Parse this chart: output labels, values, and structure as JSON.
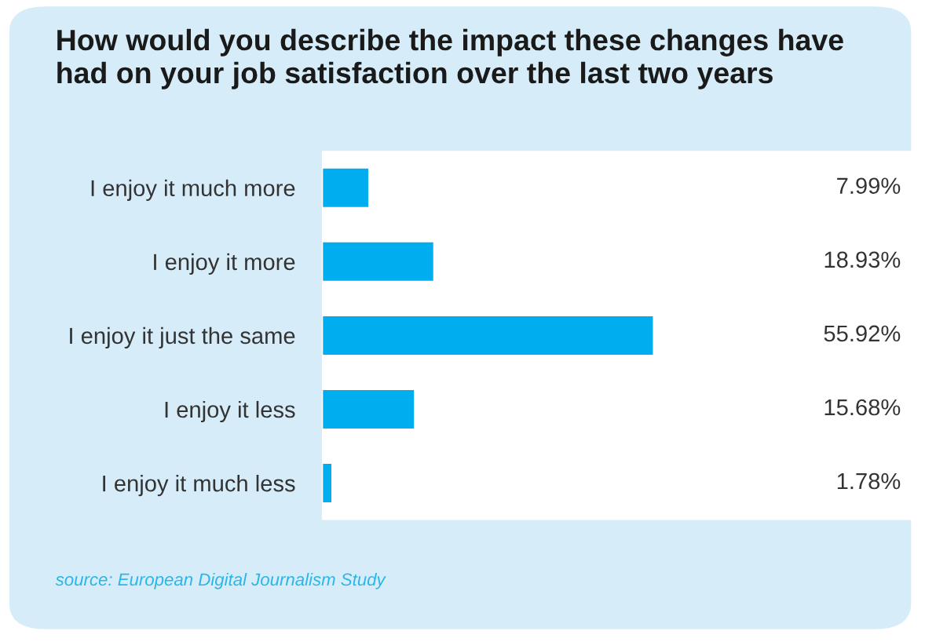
{
  "chart_data": {
    "type": "bar",
    "orientation": "horizontal",
    "title": "How would you describe the impact these changes have\nhad on your job satisfaction over the last two years",
    "categories": [
      "I enjoy it much more",
      "I enjoy it more",
      "I enjoy it just the same",
      "I enjoy it less",
      "I enjoy it much less"
    ],
    "values": [
      7.99,
      18.93,
      55.92,
      15.68,
      1.78
    ],
    "value_labels": [
      "7.99%",
      "18.93%",
      "55.92%",
      "15.68%",
      "1.78%"
    ],
    "color": "#00aeef",
    "xlim": [
      0,
      100
    ],
    "annotations": [
      "source: European Digital Journalism Study"
    ]
  }
}
